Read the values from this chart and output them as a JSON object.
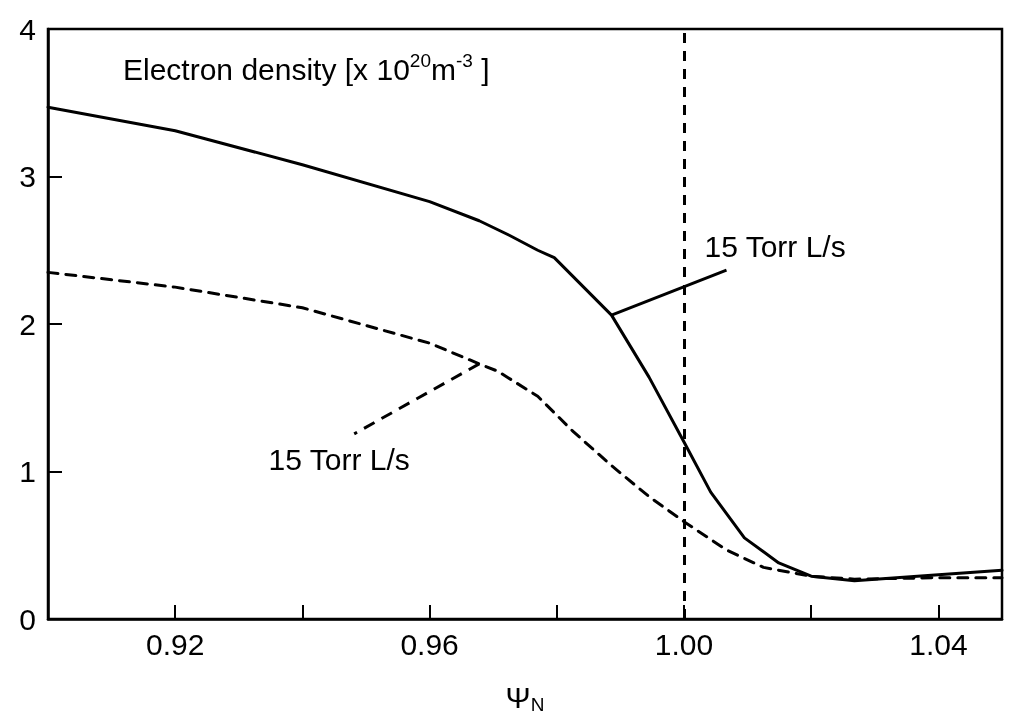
{
  "chart_data": {
    "type": "line",
    "title": "Electron density [x 10$^{20}$m$^{-3}$ ]",
    "xlabel": "Ψ$_{N}$",
    "x": [
      0.9,
      0.92,
      0.94,
      0.96,
      0.9678,
      0.9726,
      0.977,
      0.9796,
      0.9886,
      0.9945,
      1.0,
      1.0042,
      1.0095,
      1.0149,
      1.02,
      1.0268,
      1.0334,
      1.04,
      1.05
    ],
    "series": [
      {
        "color": "#000000",
        "line_style": "solid",
        "values": [
          3.47,
          3.31,
          3.08,
          2.83,
          2.7,
          2.6,
          2.5,
          2.45,
          2.06,
          1.64,
          1.2,
          0.86,
          0.55,
          0.38,
          0.29,
          0.26,
          0.28,
          0.3,
          0.33
        ]
      },
      {
        "color": "#000000",
        "line_style": "dashed",
        "x": [
          0.9,
          0.92,
          0.94,
          0.96,
          0.9678,
          0.9707,
          0.977,
          0.9826,
          0.9886,
          0.9945,
          1.0,
          1.0066,
          1.0125,
          1.02,
          1.0268,
          1.04,
          1.05
        ],
        "values": [
          2.35,
          2.25,
          2.11,
          1.87,
          1.73,
          1.68,
          1.51,
          1.27,
          1.04,
          0.83,
          0.66,
          0.47,
          0.35,
          0.29,
          0.27,
          0.28,
          0.28
        ]
      }
    ],
    "xlim": [
      0.9,
      1.05
    ],
    "xticks": [
      0.92,
      {
        "value": 0.94,
        "label": null
      },
      0.96,
      {
        "value": 0.98,
        "label": null
      },
      {
        "value": 1.0,
        "label": "1.00"
      },
      {
        "value": 1.02,
        "label": null
      },
      1.04
    ],
    "ylim": [
      0,
      4
    ],
    "yticks": [
      0,
      1,
      2,
      3,
      4
    ],
    "ref_lines": [
      {
        "axis": "x",
        "value": 1.0,
        "color": "#000000",
        "line_style": "dashed"
      }
    ],
    "annotations": [
      {
        "text": "15 Torr L/s",
        "x": 0.9886,
        "y": 2.06
      },
      {
        "text": "15 Torr L/s",
        "x": 0.9678,
        "y": 1.73
      }
    ],
    "marker": "none",
    "grid": false
  }
}
